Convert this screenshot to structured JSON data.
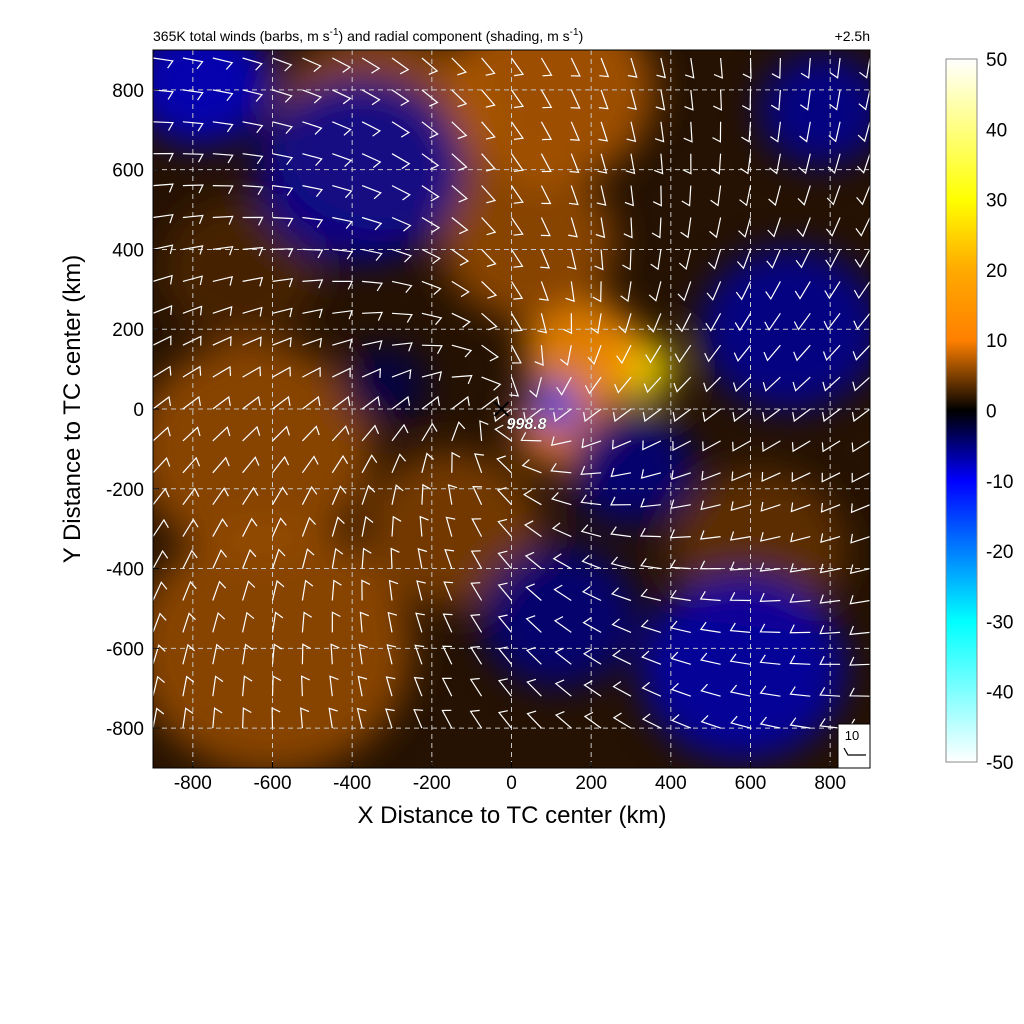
{
  "chart_data": {
    "type": "heatmap",
    "title_left_main": "365K total winds (barbs, m s",
    "title_left_sup1": "-1",
    "title_left_mid": ") and radial component (shading, m s",
    "title_left_sup2": "-1",
    "title_left_end": ")",
    "title_right": "+2.5h",
    "xlabel": "X Distance to TC center (km)",
    "ylabel": "Y Distance to TC center (km)",
    "xlim": [
      -900,
      900
    ],
    "ylim": [
      -900,
      900
    ],
    "x_ticks": [
      -800,
      -600,
      -400,
      -200,
      0,
      200,
      400,
      600,
      800
    ],
    "y_ticks": [
      -800,
      -600,
      -400,
      -200,
      0,
      200,
      400,
      600,
      800
    ],
    "x_tick_labels": [
      "-800",
      "-600",
      "-400",
      "-200",
      "0",
      "200",
      "400",
      "600",
      "800"
    ],
    "y_tick_labels": [
      "-800",
      "-600",
      "-400",
      "-200",
      "0",
      "200",
      "400",
      "600",
      "800"
    ],
    "grid": true,
    "colorbar": {
      "range": [
        -50,
        50
      ],
      "ticks": [
        50,
        40,
        30,
        20,
        10,
        0,
        -10,
        -20,
        -30,
        -40,
        -50
      ],
      "tick_labels": [
        "50",
        "40",
        "30",
        "20",
        "10",
        "0",
        "-10",
        "-20",
        "-30",
        "-40",
        "-50"
      ],
      "colors": [
        "#ffffff",
        "#ffff80",
        "#ffff00",
        "#ffaa00",
        "#ff8000",
        "#000000",
        "#0000ff",
        "#0080ff",
        "#00ffff",
        "#80ffff",
        "#ffffff"
      ]
    },
    "center": {
      "x": -25,
      "y": 0,
      "label": "998.8"
    },
    "reference_barb": {
      "label": "10"
    },
    "shading_blobs": [
      {
        "x": 320,
        "y": 100,
        "r": 90,
        "value": 28
      },
      {
        "x": 180,
        "y": 140,
        "r": 150,
        "value": 14
      },
      {
        "x": 130,
        "y": -40,
        "r": 120,
        "value": 12
      },
      {
        "x": 40,
        "y": 420,
        "r": 220,
        "value": 6
      },
      {
        "x": -320,
        "y": 700,
        "r": 280,
        "value": 6
      },
      {
        "x": 100,
        "y": 800,
        "r": 260,
        "value": 7
      },
      {
        "x": -650,
        "y": -100,
        "r": 300,
        "value": 6
      },
      {
        "x": -600,
        "y": -600,
        "r": 350,
        "value": 6
      },
      {
        "x": -150,
        "y": -300,
        "r": 220,
        "value": 5
      },
      {
        "x": 620,
        "y": -350,
        "r": 220,
        "value": 4
      },
      {
        "x": -680,
        "y": 350,
        "r": 200,
        "value": 3
      },
      {
        "x": 110,
        "y": 10,
        "r": 70,
        "value": -14
      },
      {
        "x": -380,
        "y": 600,
        "r": 260,
        "value": -6
      },
      {
        "x": -780,
        "y": 820,
        "r": 180,
        "value": -8
      },
      {
        "x": 700,
        "y": 200,
        "r": 230,
        "value": -6
      },
      {
        "x": 780,
        "y": 750,
        "r": 160,
        "value": -6
      },
      {
        "x": 580,
        "y": -650,
        "r": 260,
        "value": -7
      },
      {
        "x": 120,
        "y": -520,
        "r": 200,
        "value": -5
      },
      {
        "x": 300,
        "y": -150,
        "r": 160,
        "value": -5
      },
      {
        "x": -320,
        "y": 60,
        "r": 110,
        "value": -3
      }
    ],
    "barb_speed": 10
  }
}
